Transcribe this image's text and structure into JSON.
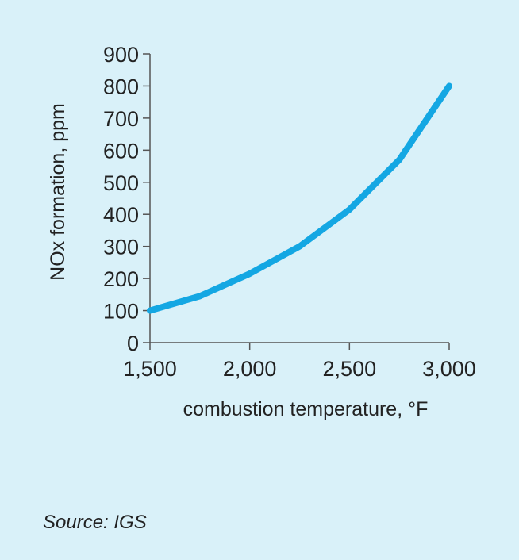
{
  "chart_data": {
    "type": "line",
    "xlabel": "combustion temperature, °F",
    "ylabel": "NOx formation, ppm",
    "xlim": [
      1500,
      3000
    ],
    "ylim": [
      0,
      900
    ],
    "x_ticks": [
      "1,500",
      "2,000",
      "2,500",
      "3,000"
    ],
    "y_ticks": [
      "0",
      "100",
      "200",
      "300",
      "400",
      "500",
      "600",
      "700",
      "800",
      "900"
    ],
    "x": [
      1500,
      1750,
      2000,
      2250,
      2500,
      2750,
      3000
    ],
    "y": [
      100,
      145,
      215,
      300,
      415,
      570,
      800
    ],
    "grid": false,
    "line_color": "#14a7e3"
  },
  "source": "Source: IGS",
  "colors": {
    "background": "#d9f1f9",
    "axis": "#555555",
    "text": "#222222"
  }
}
